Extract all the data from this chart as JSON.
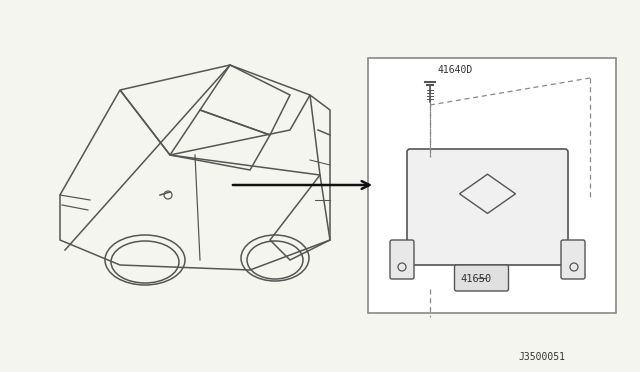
{
  "background_color": "#f5f5f0",
  "diagram_bg": "#ffffff",
  "line_color": "#555555",
  "text_color": "#333333",
  "part_label_1": "41640D",
  "part_label_2": "41650",
  "diagram_code": "J3500051",
  "arrow_color": "#111111",
  "box_border_color": "#888888",
  "dashed_line_color": "#888888"
}
